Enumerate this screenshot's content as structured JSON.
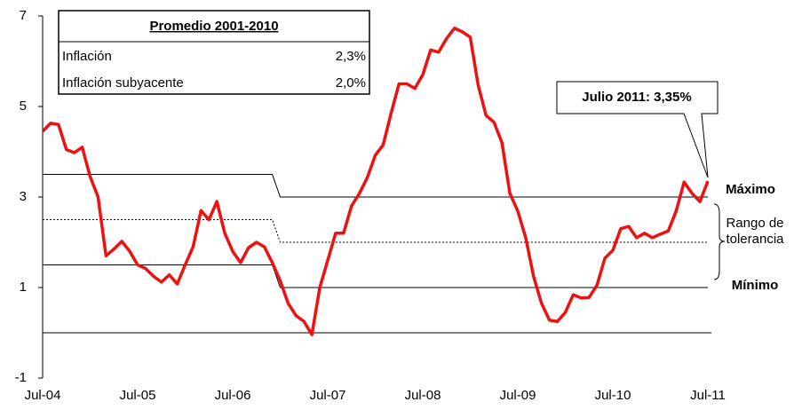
{
  "chart_data": {
    "type": "line",
    "categories": [
      "Jul-04",
      null,
      null,
      null,
      null,
      null,
      null,
      null,
      null,
      null,
      null,
      null,
      "Jul-05",
      null,
      null,
      null,
      null,
      null,
      null,
      null,
      null,
      null,
      null,
      null,
      "Jul-06",
      null,
      null,
      null,
      null,
      null,
      null,
      null,
      null,
      null,
      null,
      null,
      "Jul-07",
      null,
      null,
      null,
      null,
      null,
      null,
      null,
      null,
      null,
      null,
      null,
      "Jul-08",
      null,
      null,
      null,
      null,
      null,
      null,
      null,
      null,
      null,
      null,
      null,
      "Jul-09",
      null,
      null,
      null,
      null,
      null,
      null,
      null,
      null,
      null,
      null,
      null,
      "Jul-10",
      null,
      null,
      null,
      null,
      null,
      null,
      null,
      null,
      null,
      null,
      null,
      "Jul-11"
    ],
    "values": [
      4.45,
      4.63,
      4.6,
      4.05,
      3.98,
      4.1,
      3.45,
      3.0,
      1.7,
      1.85,
      2.02,
      1.8,
      1.5,
      1.42,
      1.25,
      1.12,
      1.28,
      1.08,
      1.5,
      1.9,
      2.7,
      2.5,
      2.9,
      2.2,
      1.8,
      1.55,
      1.88,
      2.0,
      1.9,
      1.55,
      1.15,
      0.65,
      0.38,
      0.25,
      -0.04,
      1.0,
      1.6,
      2.2,
      2.2,
      2.8,
      3.08,
      3.43,
      3.92,
      4.15,
      4.85,
      5.5,
      5.5,
      5.4,
      5.7,
      6.25,
      6.2,
      6.5,
      6.73,
      6.65,
      6.53,
      5.47,
      4.8,
      4.65,
      4.2,
      3.08,
      2.69,
      2.1,
      1.24,
      0.65,
      0.28,
      0.25,
      0.45,
      0.84,
      0.77,
      0.78,
      1.05,
      1.65,
      1.82,
      2.3,
      2.35,
      2.1,
      2.2,
      2.1,
      2.18,
      2.25,
      2.69,
      3.33,
      3.08,
      2.9,
      3.35
    ],
    "color": "#ee1111",
    "ylim": [
      -1,
      7
    ],
    "yticks": [
      -1,
      1,
      3,
      5,
      7
    ],
    "zero_line": 0,
    "bands": {
      "max": {
        "label": "Máximo",
        "values": [
          3.5,
          3.5,
          3.5,
          3.5,
          3.5,
          3.5,
          3.5,
          3.5,
          3.5,
          3.5,
          3.5,
          3.5,
          3.5,
          3.5,
          3.5,
          3.5,
          3.5,
          3.5,
          3.5,
          3.5,
          3.5,
          3.5,
          3.5,
          3.5,
          3.5,
          3.5,
          3.5,
          3.5,
          3.5,
          3.5,
          3,
          3,
          3,
          3,
          3,
          3,
          3,
          3,
          3,
          3,
          3,
          3,
          3,
          3,
          3,
          3,
          3,
          3,
          3,
          3,
          3,
          3,
          3,
          3,
          3,
          3,
          3,
          3,
          3,
          3,
          3,
          3,
          3,
          3,
          3,
          3,
          3,
          3,
          3,
          3,
          3,
          3,
          3,
          3,
          3,
          3,
          3,
          3,
          3,
          3,
          3,
          3,
          3,
          3,
          3
        ]
      },
      "center": {
        "label": [
          "Rango de",
          "tolerancia"
        ],
        "values": [
          2.5,
          2.5,
          2.5,
          2.5,
          2.5,
          2.5,
          2.5,
          2.5,
          2.5,
          2.5,
          2.5,
          2.5,
          2.5,
          2.5,
          2.5,
          2.5,
          2.5,
          2.5,
          2.5,
          2.5,
          2.5,
          2.5,
          2.5,
          2.5,
          2.5,
          2.5,
          2.5,
          2.5,
          2.5,
          2.5,
          2,
          2,
          2,
          2,
          2,
          2,
          2,
          2,
          2,
          2,
          2,
          2,
          2,
          2,
          2,
          2,
          2,
          2,
          2,
          2,
          2,
          2,
          2,
          2,
          2,
          2,
          2,
          2,
          2,
          2,
          2,
          2,
          2,
          2,
          2,
          2,
          2,
          2,
          2,
          2,
          2,
          2,
          2,
          2,
          2,
          2,
          2,
          2,
          2,
          2,
          2,
          2,
          2,
          2,
          2
        ]
      },
      "min": {
        "label": "Mínimo",
        "values": [
          1.5,
          1.5,
          1.5,
          1.5,
          1.5,
          1.5,
          1.5,
          1.5,
          1.5,
          1.5,
          1.5,
          1.5,
          1.5,
          1.5,
          1.5,
          1.5,
          1.5,
          1.5,
          1.5,
          1.5,
          1.5,
          1.5,
          1.5,
          1.5,
          1.5,
          1.5,
          1.5,
          1.5,
          1.5,
          1.5,
          1,
          1,
          1,
          1,
          1,
          1,
          1,
          1,
          1,
          1,
          1,
          1,
          1,
          1,
          1,
          1,
          1,
          1,
          1,
          1,
          1,
          1,
          1,
          1,
          1,
          1,
          1,
          1,
          1,
          1,
          1,
          1,
          1,
          1,
          1,
          1,
          1,
          1,
          1,
          1,
          1,
          1,
          1,
          1,
          1,
          1,
          1,
          1,
          1,
          1,
          1,
          1,
          1,
          1,
          1
        ]
      }
    },
    "table": {
      "title": "Promedio 2001-2010",
      "rows": [
        [
          "Inflación",
          "2,3%"
        ],
        [
          "Inflación subyacente",
          "2,0%"
        ]
      ]
    },
    "callout": "Julio 2011: 3,35%"
  }
}
